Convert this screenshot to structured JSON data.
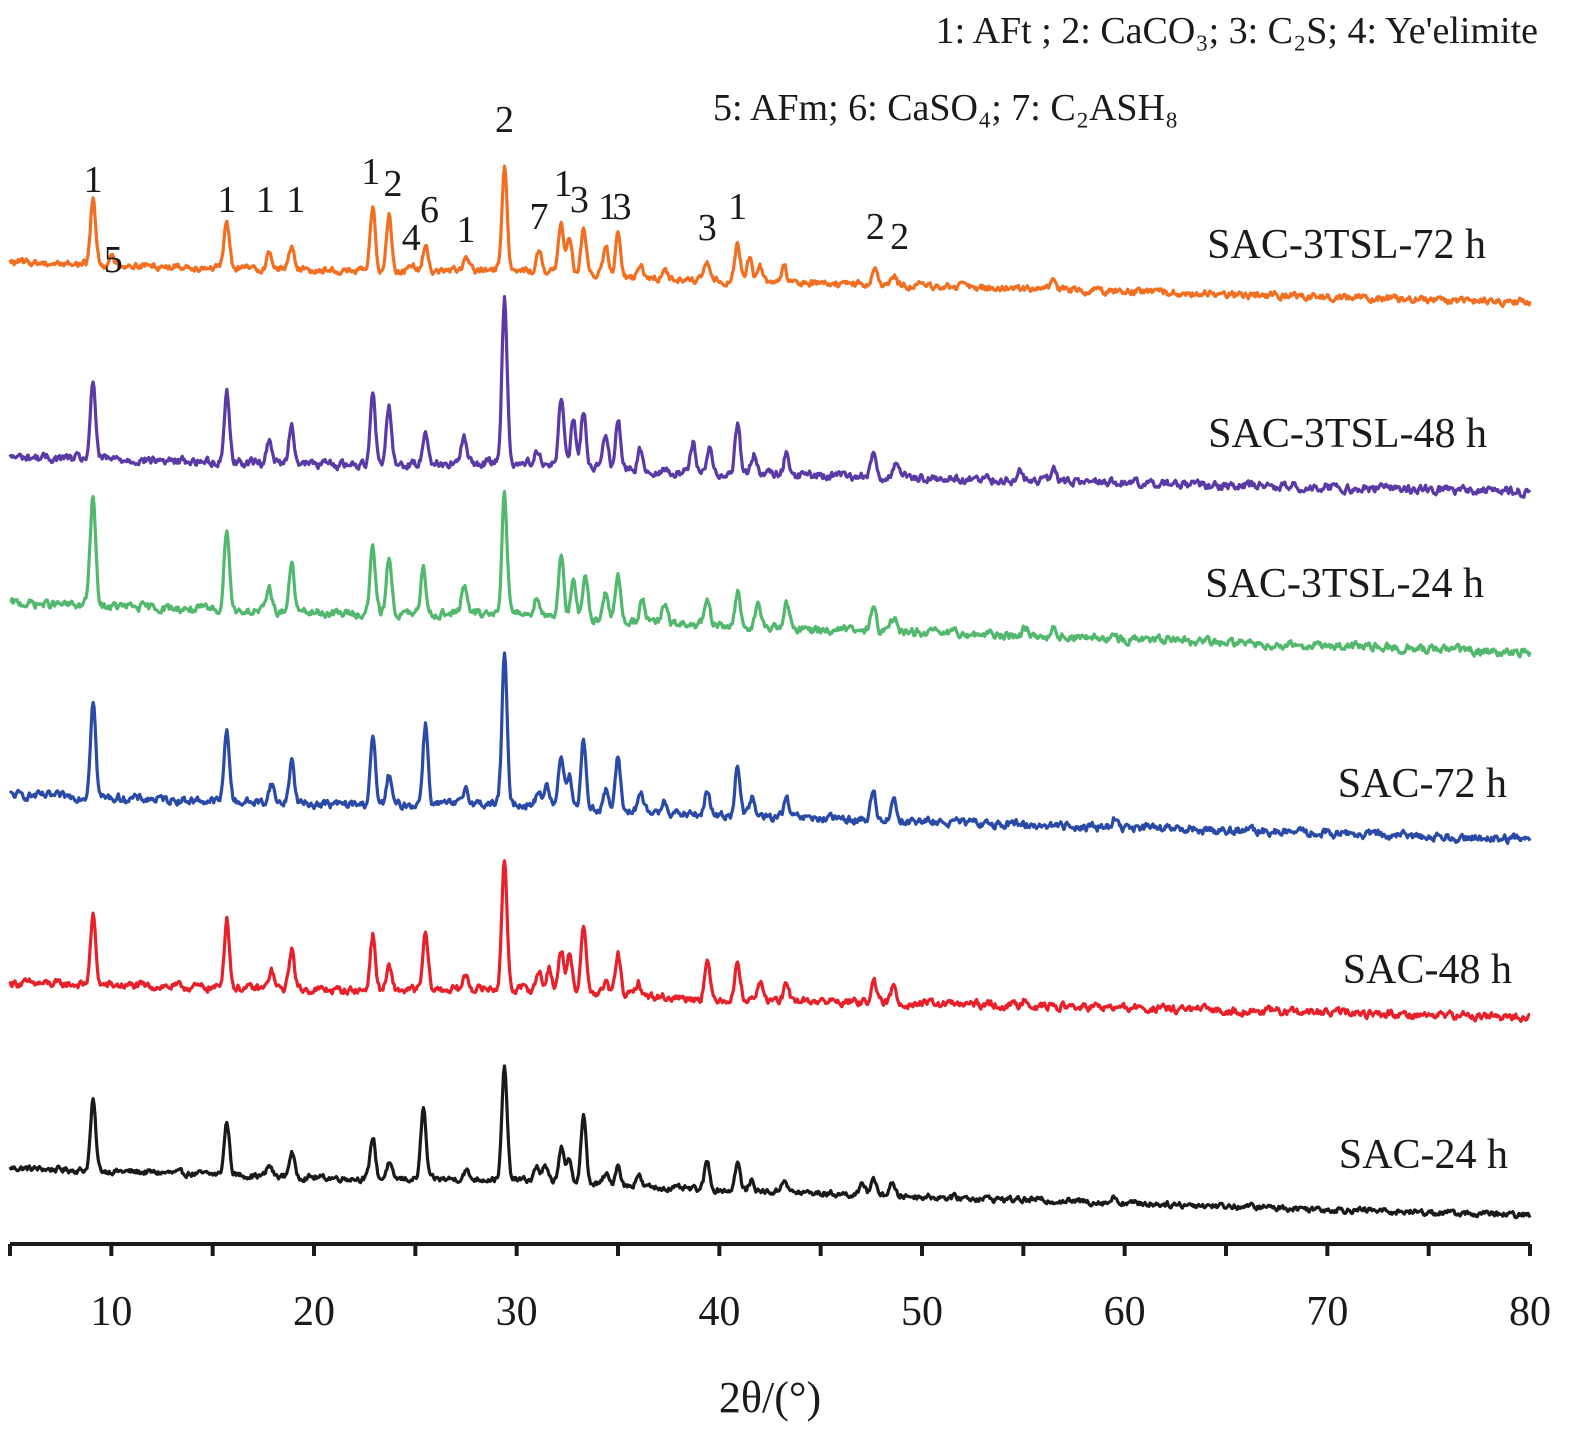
{
  "chart_data": {
    "type": "line",
    "title": "",
    "xlabel": "2θ/(°)",
    "ylabel": "",
    "xlim": [
      5,
      80
    ],
    "x_major_ticks": [
      10,
      20,
      30,
      40,
      50,
      60,
      70,
      80
    ],
    "x_minor_step": 5,
    "y_axis_shown": false,
    "grid": false,
    "legend_lines": [
      "1: AFt ;  2: CaCO₃; 3: C₂S; 4: Ye'elimite",
      "5: AFm; 6: CaSO₄; 7: C₂ASH₈"
    ],
    "phase_key": {
      "1": "AFt",
      "2": "CaCO₃",
      "3": "C₂S",
      "4": "Ye'elimite",
      "5": "AFm",
      "6": "CaSO₄",
      "7": "C₂ASH₈"
    },
    "series": [
      {
        "name": "SAC-24 h",
        "color": "#1a1a1a",
        "peaks": [
          [
            9.1,
            100
          ],
          [
            15.7,
            75
          ],
          [
            17.8,
            15
          ],
          [
            18.9,
            35
          ],
          [
            22.9,
            60
          ],
          [
            23.7,
            22
          ],
          [
            25.4,
            100
          ],
          [
            27.5,
            12
          ],
          [
            29.4,
            160
          ],
          [
            31.0,
            20
          ],
          [
            31.4,
            20
          ],
          [
            32.2,
            50
          ],
          [
            32.6,
            30
          ],
          [
            33.3,
            95
          ],
          [
            34.4,
            15
          ],
          [
            35.0,
            30
          ],
          [
            36.0,
            18
          ],
          [
            39.4,
            40
          ],
          [
            40.9,
            40
          ],
          [
            41.6,
            15
          ],
          [
            43.2,
            20
          ],
          [
            47.1,
            15
          ],
          [
            47.6,
            25
          ],
          [
            48.5,
            18
          ],
          [
            59.5,
            8
          ]
        ],
        "baseline": 30,
        "baseline_end": 5
      },
      {
        "name": "SAC-48 h",
        "color": "#e8202a",
        "peaks": [
          [
            9.1,
            75
          ],
          [
            15.7,
            75
          ],
          [
            17.9,
            20
          ],
          [
            18.9,
            45
          ],
          [
            22.9,
            60
          ],
          [
            23.7,
            25
          ],
          [
            25.5,
            60
          ],
          [
            27.5,
            15
          ],
          [
            29.4,
            140
          ],
          [
            31.1,
            20
          ],
          [
            31.6,
            25
          ],
          [
            32.2,
            45
          ],
          [
            32.6,
            38
          ],
          [
            33.3,
            75
          ],
          [
            34.4,
            12
          ],
          [
            35.0,
            45
          ],
          [
            36.0,
            15
          ],
          [
            39.4,
            40
          ],
          [
            40.9,
            40
          ],
          [
            42.0,
            20
          ],
          [
            43.3,
            15
          ],
          [
            47.6,
            25
          ],
          [
            48.6,
            18
          ],
          [
            55.1,
            10
          ]
        ],
        "baseline": 15,
        "baseline_end": 5
      },
      {
        "name": "SAC-72 h",
        "color": "#2a4aa8",
        "peaks": [
          [
            9.1,
            105
          ],
          [
            15.7,
            75
          ],
          [
            17.9,
            20
          ],
          [
            18.9,
            45
          ],
          [
            22.9,
            70
          ],
          [
            23.7,
            30
          ],
          [
            25.5,
            85
          ],
          [
            27.5,
            18
          ],
          [
            29.4,
            155
          ],
          [
            31.1,
            15
          ],
          [
            31.5,
            20
          ],
          [
            32.2,
            55
          ],
          [
            32.6,
            35
          ],
          [
            33.3,
            70
          ],
          [
            34.4,
            20
          ],
          [
            35.0,
            55
          ],
          [
            36.1,
            20
          ],
          [
            37.3,
            15
          ],
          [
            39.4,
            25
          ],
          [
            40.9,
            55
          ],
          [
            41.6,
            20
          ],
          [
            43.3,
            20
          ],
          [
            47.6,
            30
          ],
          [
            48.6,
            25
          ],
          [
            59.5,
            8
          ]
        ],
        "baseline": 20,
        "baseline_end": 5
      },
      {
        "name": "SAC-3TSL-24 h",
        "color": "#52b86e",
        "peaks": [
          [
            8.9,
            10
          ],
          [
            9.1,
            110
          ],
          [
            15.7,
            85
          ],
          [
            17.8,
            25
          ],
          [
            18.9,
            50
          ],
          [
            22.9,
            70
          ],
          [
            23.7,
            60
          ],
          [
            25.4,
            45
          ],
          [
            27.4,
            30
          ],
          [
            29.4,
            125
          ],
          [
            31.0,
            20
          ],
          [
            32.2,
            65
          ],
          [
            32.8,
            35
          ],
          [
            33.4,
            40
          ],
          [
            34.4,
            30
          ],
          [
            35.0,
            45
          ],
          [
            36.2,
            25
          ],
          [
            37.3,
            20
          ],
          [
            39.4,
            25
          ],
          [
            40.9,
            35
          ],
          [
            41.9,
            25
          ],
          [
            43.3,
            25
          ],
          [
            47.6,
            25
          ],
          [
            48.6,
            15
          ],
          [
            55.1,
            10
          ],
          [
            56.5,
            12
          ]
        ],
        "baseline": 25,
        "baseline_end": 5
      },
      {
        "name": "SAC-3TSL-48 h",
        "color": "#5a3aa6",
        "peaks": [
          [
            9.1,
            75
          ],
          [
            15.7,
            70
          ],
          [
            17.8,
            25
          ],
          [
            18.9,
            40
          ],
          [
            22.9,
            75
          ],
          [
            23.7,
            60
          ],
          [
            25.5,
            35
          ],
          [
            27.4,
            25
          ],
          [
            29.4,
            165
          ],
          [
            31.0,
            15
          ],
          [
            32.2,
            65
          ],
          [
            32.8,
            45
          ],
          [
            33.3,
            55
          ],
          [
            34.4,
            35
          ],
          [
            35.0,
            50
          ],
          [
            36.1,
            20
          ],
          [
            38.7,
            30
          ],
          [
            39.5,
            25
          ],
          [
            40.9,
            50
          ],
          [
            41.7,
            20
          ],
          [
            43.3,
            20
          ],
          [
            47.6,
            25
          ],
          [
            48.7,
            12
          ],
          [
            54.8,
            8
          ],
          [
            56.5,
            10
          ]
        ],
        "baseline": 15,
        "baseline_end": 5
      },
      {
        "name": "SAC-3TSL-72 h",
        "color": "#f26f22",
        "peaks": [
          [
            9.1,
            80
          ],
          [
            10.0,
            8
          ],
          [
            15.7,
            55
          ],
          [
            17.8,
            20
          ],
          [
            18.9,
            30
          ],
          [
            22.9,
            75
          ],
          [
            23.7,
            70
          ],
          [
            24.8,
            10
          ],
          [
            25.5,
            30
          ],
          [
            27.5,
            15
          ],
          [
            29.4,
            130
          ],
          [
            31.1,
            25
          ],
          [
            32.2,
            60
          ],
          [
            32.6,
            45
          ],
          [
            33.3,
            55
          ],
          [
            34.4,
            35
          ],
          [
            35.0,
            50
          ],
          [
            36.1,
            15
          ],
          [
            37.3,
            15
          ],
          [
            39.4,
            20
          ],
          [
            40.9,
            45
          ],
          [
            41.5,
            30
          ],
          [
            42.0,
            20
          ],
          [
            43.2,
            18
          ],
          [
            47.7,
            22
          ],
          [
            48.6,
            12
          ],
          [
            56.5,
            8
          ]
        ],
        "baseline": 20,
        "baseline_end": 5
      }
    ],
    "peak_annotations": [
      {
        "label": "1",
        "x": 9.1
      },
      {
        "label": "5",
        "x": 10.0
      },
      {
        "label": "1",
        "x": 15.7
      },
      {
        "label": "1",
        "x": 17.8
      },
      {
        "label": "1",
        "x": 18.9
      },
      {
        "label": "1",
        "x": 22.9
      },
      {
        "label": "2",
        "x": 23.7
      },
      {
        "label": "4",
        "x": 24.8
      },
      {
        "label": "6",
        "x": 25.5
      },
      {
        "label": "1",
        "x": 27.5
      },
      {
        "label": "2",
        "x": 29.4
      },
      {
        "label": "7",
        "x": 31.1
      },
      {
        "label": "1",
        "x": 32.2
      },
      {
        "label": "3",
        "x": 32.8
      },
      {
        "label": "1",
        "x": 34.4
      },
      {
        "label": "3",
        "x": 35.0
      },
      {
        "label": "3",
        "x": 39.4
      },
      {
        "label": "1",
        "x": 40.9
      },
      {
        "label": "2",
        "x": 47.7
      },
      {
        "label": "2",
        "x": 48.6
      }
    ]
  }
}
